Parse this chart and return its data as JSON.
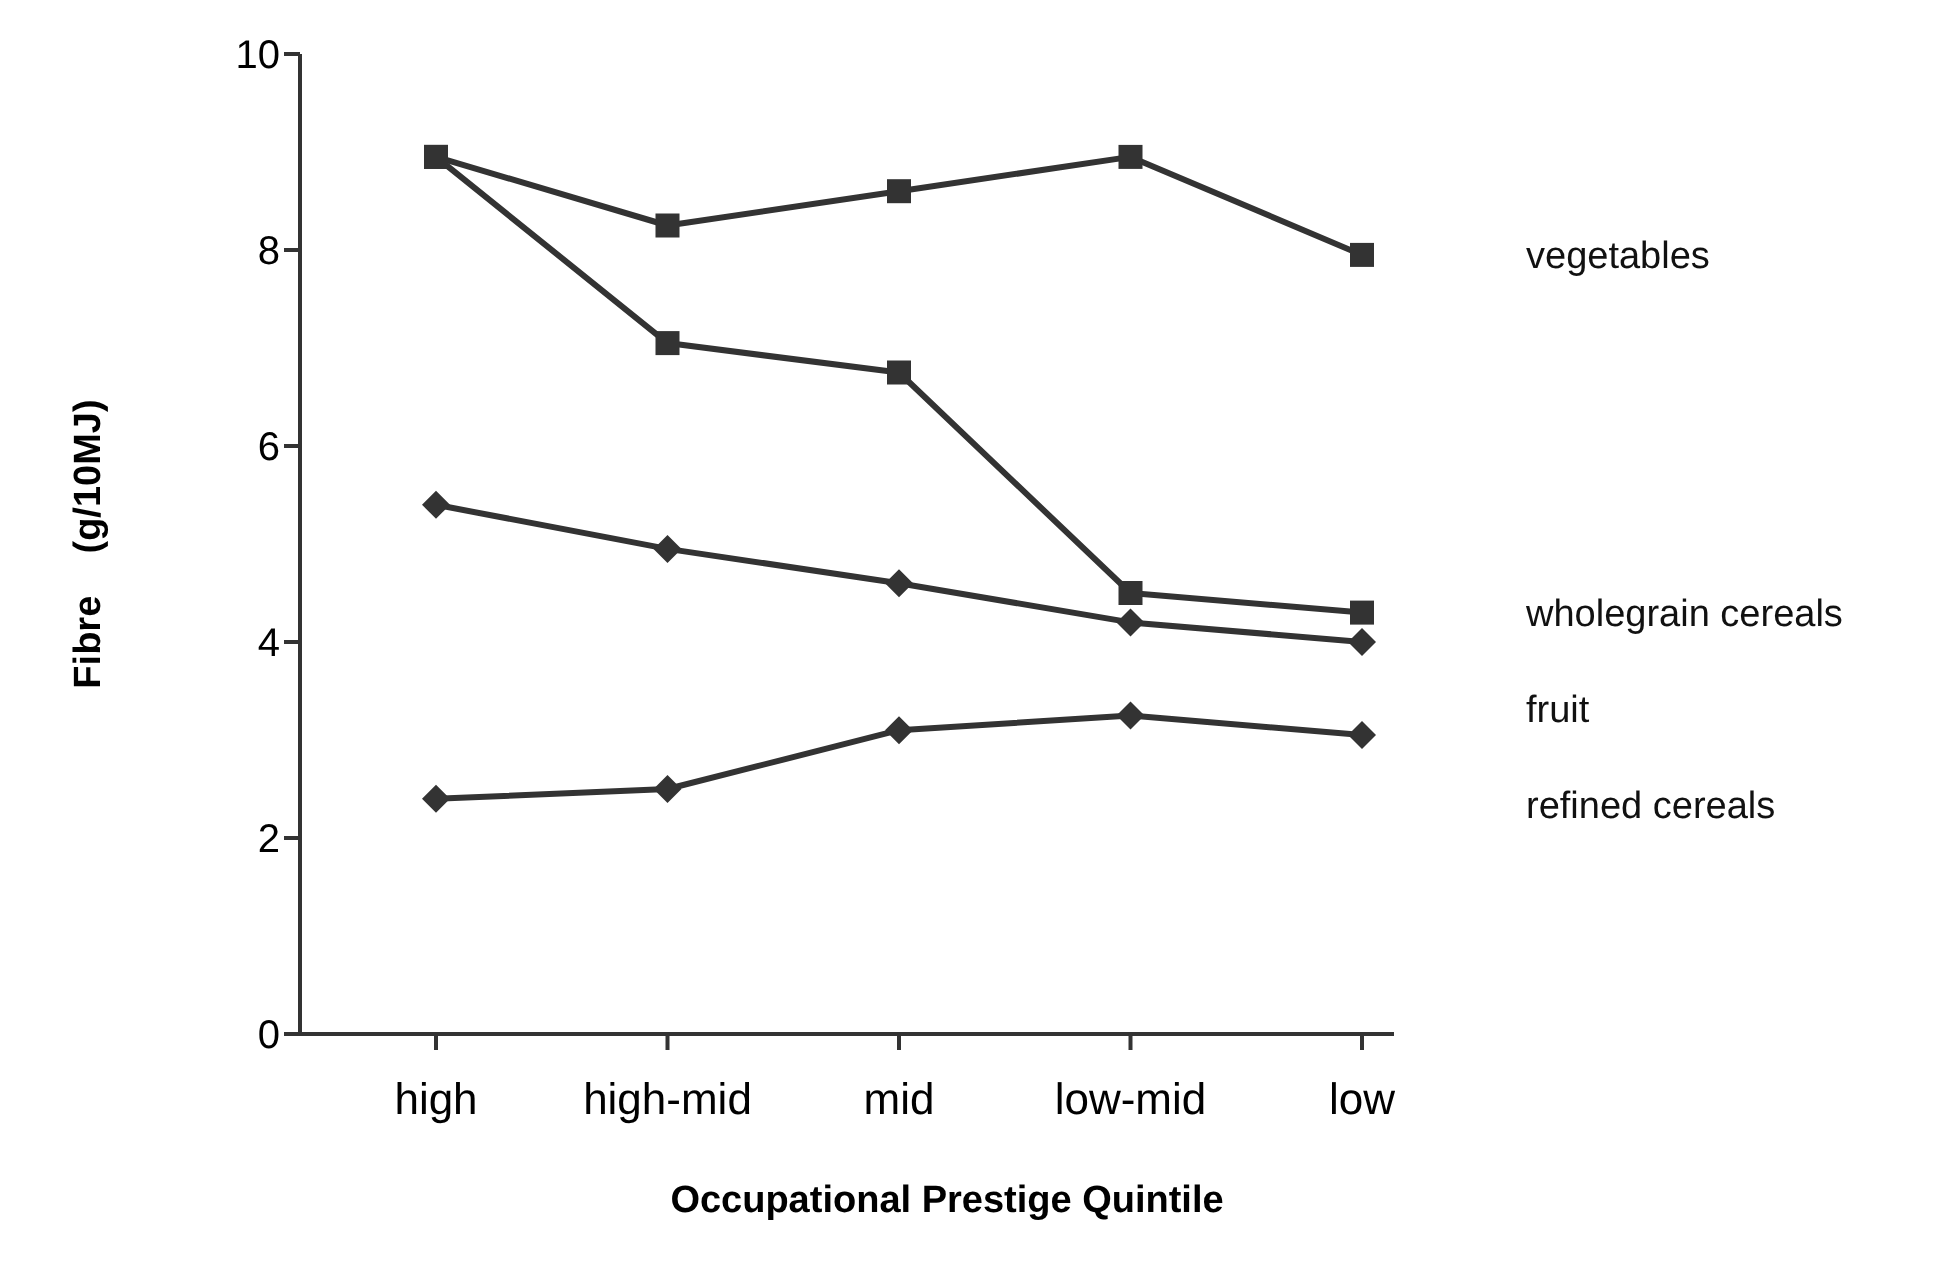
{
  "chart_data": {
    "type": "line",
    "xlabel": "Occupational Prestige Quintile",
    "ylabel": "Fibre    (g/10MJ)",
    "categories": [
      "high",
      "high-mid",
      "mid",
      "low-mid",
      "low"
    ],
    "ylim": [
      0,
      10
    ],
    "yticks": [
      0,
      2,
      4,
      6,
      8,
      10
    ],
    "grid": false,
    "legend": false,
    "line_style": "solid",
    "series": [
      {
        "name": "vegetables",
        "color": "#333333",
        "marker": "square",
        "values": [
          8.95,
          8.25,
          8.6,
          8.95,
          7.95
        ]
      },
      {
        "name": "wholegrain cereals",
        "color": "#333333",
        "marker": "square",
        "values": [
          8.95,
          7.05,
          6.75,
          4.5,
          4.3
        ]
      },
      {
        "name": "fruit",
        "color": "#333333",
        "marker": "diamond",
        "values": [
          5.4,
          4.95,
          4.6,
          4.2,
          4.0
        ]
      },
      {
        "name": "refined cereals",
        "color": "#333333",
        "marker": "diamond",
        "values": [
          2.4,
          2.5,
          3.1,
          3.25,
          3.05
        ]
      }
    ]
  }
}
